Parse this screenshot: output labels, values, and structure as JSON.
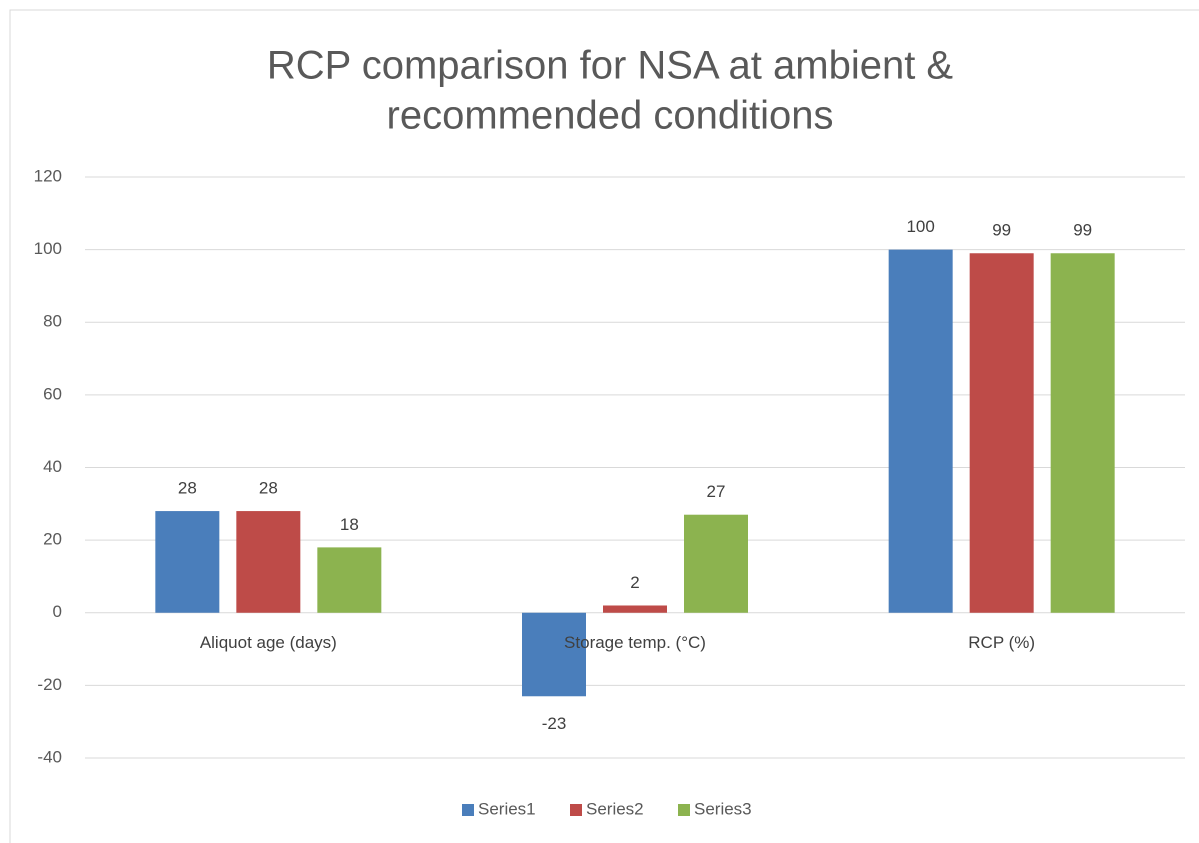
{
  "chart_data": {
    "type": "bar",
    "title": [
      "RCP comparison for NSA at ambient &",
      "recommended conditions"
    ],
    "categories": [
      "Aliquot age (days)",
      "Storage temp. (°C)",
      "RCP (%)"
    ],
    "series": [
      {
        "name": "Series1",
        "color": "#4a7ebb",
        "values": [
          28,
          -23,
          100
        ]
      },
      {
        "name": "Series2",
        "color": "#be4b48",
        "values": [
          28,
          2,
          99
        ]
      },
      {
        "name": "Series3",
        "color": "#8cb34f",
        "values": [
          18,
          27,
          99
        ]
      }
    ],
    "ylim": [
      -40,
      120
    ],
    "yticks": [
      -40,
      -20,
      0,
      20,
      40,
      60,
      80,
      100,
      120
    ],
    "grid": true,
    "legend": "bottom"
  }
}
